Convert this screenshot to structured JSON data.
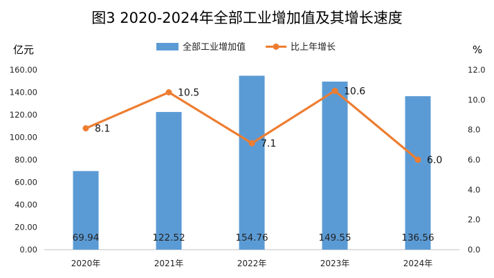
{
  "chart_data": {
    "type": "bar+line",
    "title": "图3  2020-2024年全部工业增加值及其增长速度",
    "y_left_unit": "亿元",
    "y_right_unit": "%",
    "categories": [
      "2020年",
      "2021年",
      "2022年",
      "2023年",
      "2024年"
    ],
    "series": [
      {
        "name": "全部工业增加值",
        "type": "bar",
        "axis": "left",
        "values": [
          69.94,
          122.52,
          154.76,
          149.55,
          136.56
        ],
        "labels": [
          "69.94",
          "122.52",
          "154.76",
          "149.55",
          "136.56"
        ],
        "color": "#5b9bd5"
      },
      {
        "name": "比上年增长",
        "type": "line",
        "axis": "right",
        "values": [
          8.1,
          10.5,
          7.1,
          10.6,
          6.0
        ],
        "labels": [
          "8.1",
          "10.5",
          "7.1",
          "10.6",
          "6.0"
        ],
        "color": "#ed7d31"
      }
    ],
    "y_left": {
      "min": 0,
      "max": 160,
      "step": 20,
      "tick_labels": [
        "0.00",
        "20.00",
        "40.00",
        "60.00",
        "80.00",
        "100.00",
        "120.00",
        "140.00",
        "160.00"
      ]
    },
    "y_right": {
      "min": 0,
      "max": 12,
      "step": 2,
      "tick_labels": [
        "0.0",
        "2.0",
        "4.0",
        "6.0",
        "8.0",
        "10.0",
        "12.0"
      ]
    },
    "legend_position": "top-center",
    "grid": false
  }
}
